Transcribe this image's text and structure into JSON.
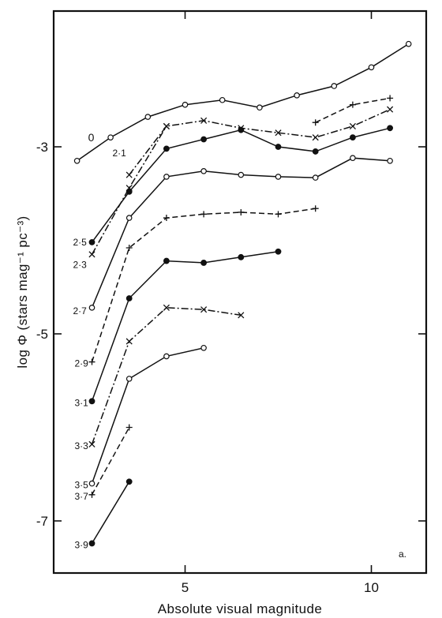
{
  "chart_data": {
    "type": "line",
    "title": "",
    "xlabel": "Absolute visual magnitude",
    "ylabel": "log Φ (stars mag⁻¹ pc⁻³)",
    "xlim": [
      1.0,
      12.0
    ],
    "ylim": [
      -7.6,
      -1.6
    ],
    "x_ticks": [
      {
        "value": 5,
        "label": "5"
      },
      {
        "value": 10,
        "label": "10"
      }
    ],
    "y_ticks": [
      {
        "value": -3,
        "label": "-3"
      },
      {
        "value": -5,
        "label": "-5"
      },
      {
        "value": -7,
        "label": "-7"
      }
    ],
    "grid": false,
    "panel_label": "a.",
    "series": [
      {
        "name": "0",
        "marker": "open-circle",
        "line": "solid",
        "x": [
          2.1,
          3.0,
          4.0,
          5.0,
          6.0,
          7.0,
          8.0,
          9.0,
          10.0,
          11.0
        ],
        "y": [
          -3.15,
          -2.9,
          -2.68,
          -2.55,
          -2.5,
          -2.58,
          -2.45,
          -2.35,
          -2.15,
          -1.9
        ]
      },
      {
        "name": "2·1",
        "marker": "cross",
        "line": "dashdot",
        "x": [
          3.5,
          4.5,
          5.5,
          6.5,
          7.5,
          8.5,
          9.5,
          10.5
        ],
        "y": [
          -3.3,
          -2.78,
          -2.72,
          -2.8,
          -2.85,
          -2.9,
          -2.78,
          -2.6
        ]
      },
      {
        "name": "2·1",
        "marker": "plus",
        "line": "dashed",
        "x": [
          8.5,
          9.5,
          10.5
        ],
        "y": [
          -2.74,
          -2.55,
          -2.48
        ]
      },
      {
        "name": "2·5",
        "marker": "filled-circle",
        "line": "solid",
        "x": [
          2.5,
          3.5,
          4.5,
          5.5,
          6.5,
          7.5,
          8.5,
          9.5,
          10.5
        ],
        "y": [
          -4.02,
          -3.48,
          -3.02,
          -2.92,
          -2.82,
          -3.0,
          -3.05,
          -2.9,
          -2.8
        ]
      },
      {
        "name": "2·3",
        "marker": "cross",
        "line": "dashdot",
        "x": [
          2.5,
          3.5,
          4.5
        ],
        "y": [
          -4.15,
          -3.44,
          -2.78
        ]
      },
      {
        "name": "2·7",
        "marker": "open-circle",
        "line": "solid",
        "x": [
          2.5,
          3.5,
          4.5,
          5.5,
          6.5,
          7.5,
          8.5,
          9.5,
          10.5
        ],
        "y": [
          -4.72,
          -3.76,
          -3.32,
          -3.26,
          -3.3,
          -3.32,
          -3.33,
          -3.12,
          -3.15
        ]
      },
      {
        "name": "2·9",
        "marker": "plus",
        "line": "dashed",
        "x": [
          2.5,
          3.5,
          4.5,
          5.5,
          6.5,
          7.5,
          8.5
        ],
        "y": [
          -5.3,
          -4.08,
          -3.76,
          -3.72,
          -3.7,
          -3.72,
          -3.66
        ]
      },
      {
        "name": "3·1",
        "marker": "filled-circle",
        "line": "solid",
        "x": [
          2.5,
          3.5,
          4.5,
          5.5,
          6.5,
          7.5
        ],
        "y": [
          -5.72,
          -4.62,
          -4.22,
          -4.24,
          -4.18,
          -4.12
        ]
      },
      {
        "name": "3·3",
        "marker": "cross",
        "line": "dashdot",
        "x": [
          2.5,
          3.5,
          4.5,
          5.5,
          6.5
        ],
        "y": [
          -6.18,
          -5.08,
          -4.72,
          -4.74,
          -4.8
        ]
      },
      {
        "name": "3·5",
        "marker": "open-circle",
        "line": "solid",
        "x": [
          2.5,
          3.5,
          4.5,
          5.5
        ],
        "y": [
          -6.6,
          -5.48,
          -5.24,
          -5.15
        ]
      },
      {
        "name": "3·7",
        "marker": "plus",
        "line": "dashed",
        "x": [
          2.5,
          3.5
        ],
        "y": [
          -6.72,
          -6.0
        ]
      },
      {
        "name": "3·9",
        "marker": "filled-circle",
        "line": "solid",
        "x": [
          2.5,
          3.5
        ],
        "y": [
          -7.24,
          -6.58
        ]
      }
    ]
  }
}
